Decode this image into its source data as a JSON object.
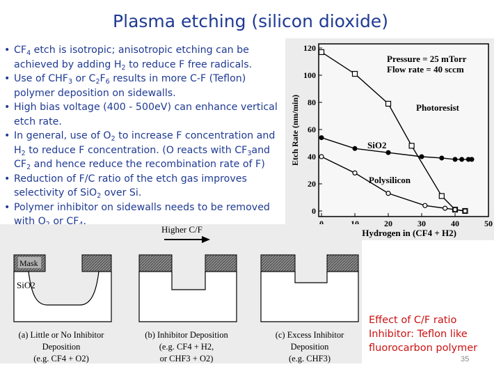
{
  "slide": {
    "title": "Plasma etching (silicon dioxide)",
    "page_number": "35",
    "bullets": [
      [
        {
          "t": "CF"
        },
        {
          "s": "4"
        },
        {
          "t": " etch is isotropic; anisotropic etching can be achieved by adding H"
        },
        {
          "s": "2"
        },
        {
          "t": " to reduce F free radicals."
        }
      ],
      [
        {
          "t": "Use of CHF"
        },
        {
          "s": "3"
        },
        {
          "t": " or C"
        },
        {
          "s": "2"
        },
        {
          "t": "F"
        },
        {
          "s": "6"
        },
        {
          "t": " results in more C-F (Teflon) polymer deposition on sidewalls."
        }
      ],
      [
        {
          "t": "High bias voltage (400 - 500eV) can enhance vertical etch rate."
        }
      ],
      [
        {
          "t": "In general, use of O"
        },
        {
          "s": "2"
        },
        {
          "t": " to increase F concentration and H"
        },
        {
          "s": "2"
        },
        {
          "t": " to reduce F concentration. (O reacts with CF"
        },
        {
          "s": "3"
        },
        {
          "t": "and CF"
        },
        {
          "s": "2"
        },
        {
          "t": " and hence reduce the recombination rate of F)"
        }
      ],
      [
        {
          "t": "Reduction of F/C ratio of the etch gas improves selectivity of SiO"
        },
        {
          "s": "2"
        },
        {
          "t": " over Si."
        }
      ],
      [
        {
          "t": "Polymer inhibitor on sidewalls needs to be removed with O"
        },
        {
          "s": "2"
        },
        {
          "t": " or CF"
        },
        {
          "s": "4"
        },
        {
          "t": "."
        }
      ]
    ],
    "caption_lines": [
      "Effect of C/F ratio",
      "Inhibitor: Teflon like",
      "fluorocarbon polymer"
    ]
  },
  "chart_data": {
    "type": "line",
    "xlabel": "% Hydrogen in (CF4 + H2)",
    "ylabel": "Etch Rate (nm/min)",
    "x_ticks": [
      "0",
      "10",
      "20",
      "30",
      "40",
      "50"
    ],
    "y_ticks": [
      "0",
      "20",
      "40",
      "60",
      "80",
      "100",
      "120"
    ],
    "xlim": [
      0,
      50
    ],
    "ylim": [
      0,
      120
    ],
    "annotation_lines": [
      "Pressure = 25 mTorr",
      "Flow rate = 40 sccm"
    ],
    "series": [
      {
        "name": "Photoresist",
        "marker": "open-square",
        "x": [
          0,
          10,
          20,
          27,
          36,
          40,
          43
        ],
        "y": [
          117,
          101,
          79,
          48,
          11,
          1,
          0
        ]
      },
      {
        "name": "SiO2",
        "marker": "filled-circle",
        "x": [
          0,
          10,
          20,
          30,
          36,
          40,
          42,
          44,
          45
        ],
        "y": [
          54,
          46,
          43,
          40,
          39,
          38,
          38,
          38,
          38
        ]
      },
      {
        "name": "Polysilicon",
        "marker": "open-circle",
        "x": [
          0,
          10,
          20,
          31,
          37,
          40,
          43
        ],
        "y": [
          40,
          28,
          13,
          4,
          2,
          1,
          0
        ]
      }
    ]
  },
  "diagram": {
    "arrow_label": "Higher C/F",
    "mask_label": "Mask",
    "oxide_label": "SiO2",
    "panels": [
      {
        "caption": [
          "(a) Little or No Inhibitor",
          "Deposition",
          "(e.g. CF4 + O2)"
        ]
      },
      {
        "caption": [
          "(b) Inhibitor Deposition",
          "(e.g. CF4 + H2,",
          "or CHF3 + O2)"
        ]
      },
      {
        "caption": [
          "(c) Excess Inhibitor",
          "Deposition",
          "(e.g. CHF3)"
        ]
      }
    ]
  }
}
